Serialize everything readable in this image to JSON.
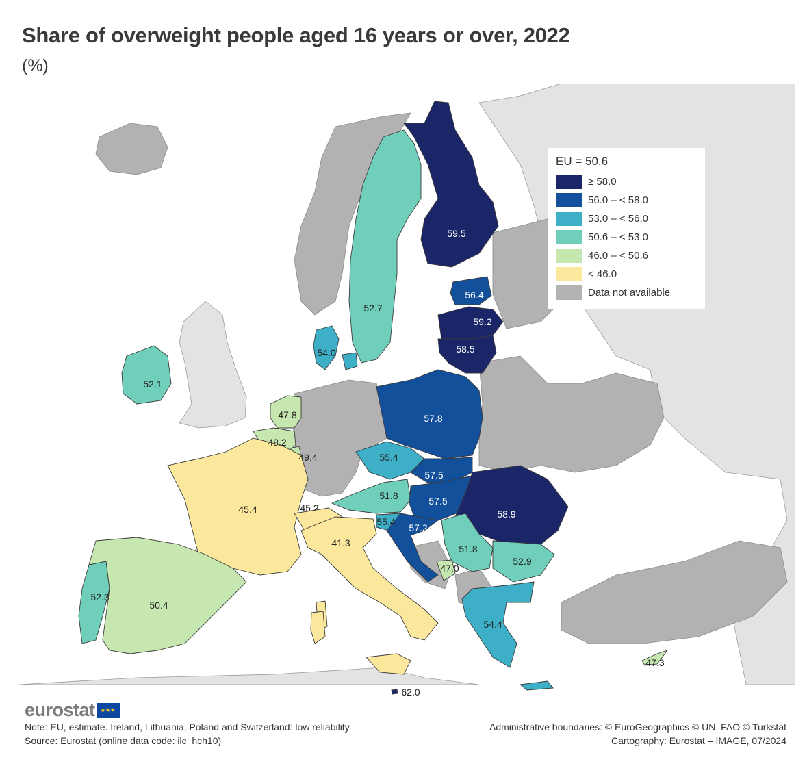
{
  "title": "Share of overweight people aged 16 years or over, 2022",
  "subtitle": "(%)",
  "legend": {
    "eu_label": "EU = 50.6",
    "classes": [
      {
        "label": "≥ 58.0",
        "color": "#1b2669"
      },
      {
        "label": "56.0 – < 58.0",
        "color": "#12509c"
      },
      {
        "label": "53.0 – < 56.0",
        "color": "#3db0c8"
      },
      {
        "label": "50.6 – < 53.0",
        "color": "#6fcfbb"
      },
      {
        "label": "46.0 – < 50.6",
        "color": "#c6e8b0"
      },
      {
        "label": "< 46.0",
        "color": "#fce89c"
      },
      {
        "label": "Data not available",
        "color": "#b2b2b2"
      }
    ]
  },
  "colors": {
    "no_data": "#b2b2b2",
    "non_member": "#e3e3e3",
    "sea": "#ffffff",
    "border": "#3a3a3a"
  },
  "values": {
    "finland": "59.5",
    "sweden": "52.7",
    "estonia": "56.4",
    "latvia": "59.2",
    "lithuania": "58.5",
    "denmark": "54.0",
    "ireland": "52.1",
    "netherlands": "47.8",
    "belgium": "48.2",
    "luxembourg": "49.4",
    "poland": "57.8",
    "czechia": "55.4",
    "slovakia": "57.5",
    "hungary": "57.5",
    "austria": "51.8",
    "slovenia": "55.4",
    "croatia": "57.2",
    "romania": "58.9",
    "serbia": "51.8",
    "bulgaria": "52.9",
    "montenegro": "47.0",
    "greece": "54.4",
    "france": "45.4",
    "switzerland": "45.2",
    "italy": "41.3",
    "portugal": "52.3",
    "spain": "50.4",
    "malta": "62.0",
    "cyprus": "47.3"
  },
  "branding": {
    "logo_text": "eurostat"
  },
  "footer": {
    "note": "Note: EU, estimate. Ireland, Lithuania, Poland and Switzerland: low reliability.",
    "source": "Source: Eurostat (online data code: ilc_hch10)",
    "boundaries": "Administrative boundaries: © EuroGeographics © UN–FAO © Turkstat",
    "cartography": "Cartography: Eurostat – IMAGE, 07/2024"
  }
}
